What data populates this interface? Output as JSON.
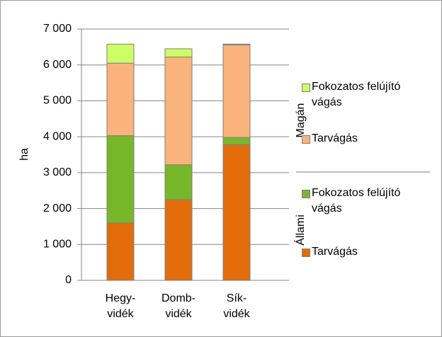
{
  "chart_data": {
    "type": "stacked_bar",
    "ylabel": "ha",
    "categories": [
      "Hegy-\nvidék",
      "Domb-\nvidék",
      "Sík-\nvidék"
    ],
    "series": [
      {
        "name": "Tarvágás",
        "group": "Állami",
        "color": "#e36c0a",
        "values": [
          1600,
          2250,
          3780
        ]
      },
      {
        "name": "Fokozatos felújító vágás",
        "group": "Állami",
        "color": "#77b82a",
        "values": [
          2430,
          970,
          200
        ]
      },
      {
        "name": "Tarvágás",
        "group": "Magán",
        "color": "#fab37a",
        "values": [
          2020,
          3000,
          2580
        ]
      },
      {
        "name": "Fokozatos felújító vágás",
        "group": "Magán",
        "color": "#ccff66",
        "values": [
          530,
          230,
          20
        ]
      }
    ],
    "ylim": [
      0,
      7000
    ],
    "yticks": [
      0,
      {
        "value": 1000,
        "label": "1 000"
      },
      {
        "value": 2000,
        "label": "2 000"
      },
      {
        "value": 3000,
        "label": "3 000"
      },
      {
        "value": 4000,
        "label": "4 000"
      },
      {
        "value": 5000,
        "label": "5 000"
      },
      {
        "value": 6000,
        "label": "6 000"
      },
      {
        "value": 7000,
        "label": "7 000"
      }
    ],
    "grid": true
  }
}
